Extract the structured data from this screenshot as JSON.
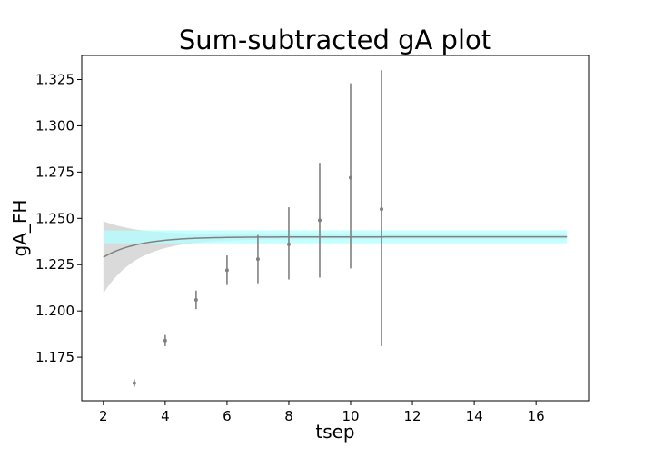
{
  "chart_data": {
    "type": "scatter",
    "title": "Sum-subtracted gA plot",
    "xlabel": "tsep",
    "ylabel": "gA_FH",
    "xlim": [
      1.3,
      17.7
    ],
    "ylim": [
      1.1515,
      1.338
    ],
    "xticks": [
      2,
      4,
      6,
      8,
      10,
      12,
      14,
      16
    ],
    "yticks": [
      1.175,
      1.2,
      1.225,
      1.25,
      1.275,
      1.3,
      1.325
    ],
    "ytick_labels": [
      "1.175",
      "1.200",
      "1.225",
      "1.250",
      "1.275",
      "1.300",
      "1.325"
    ],
    "grid": false,
    "colors": {
      "points": "#808080",
      "fit_line": "#808080",
      "fit_band": "#d3d3d3",
      "plateau_band": "#b3ffff",
      "overlap_band": "#a9dbdb"
    },
    "series": [
      {
        "kind": "errorbar",
        "x": [
          3,
          4,
          5,
          6,
          7,
          8,
          9,
          10,
          11
        ],
        "y": [
          1.161,
          1.184,
          1.206,
          1.222,
          1.228,
          1.236,
          1.249,
          1.272,
          1.255
        ],
        "yerr_low": [
          0.002,
          0.003,
          0.005,
          0.008,
          0.013,
          0.019,
          0.031,
          0.049,
          0.074
        ],
        "yerr_high": [
          0.002,
          0.003,
          0.005,
          0.008,
          0.013,
          0.02,
          0.031,
          0.051,
          0.075
        ]
      },
      {
        "kind": "fit",
        "plateau": 1.24,
        "amplitude": -0.011,
        "decay": 0.9,
        "x_range": [
          2,
          17
        ],
        "band_halfwidth_at_start": 0.0195,
        "band_halfwidth_far": 0.0012
      },
      {
        "kind": "plateau-band",
        "y_low": 1.2365,
        "y_high": 1.2435,
        "x_range": [
          2,
          17
        ]
      }
    ]
  }
}
